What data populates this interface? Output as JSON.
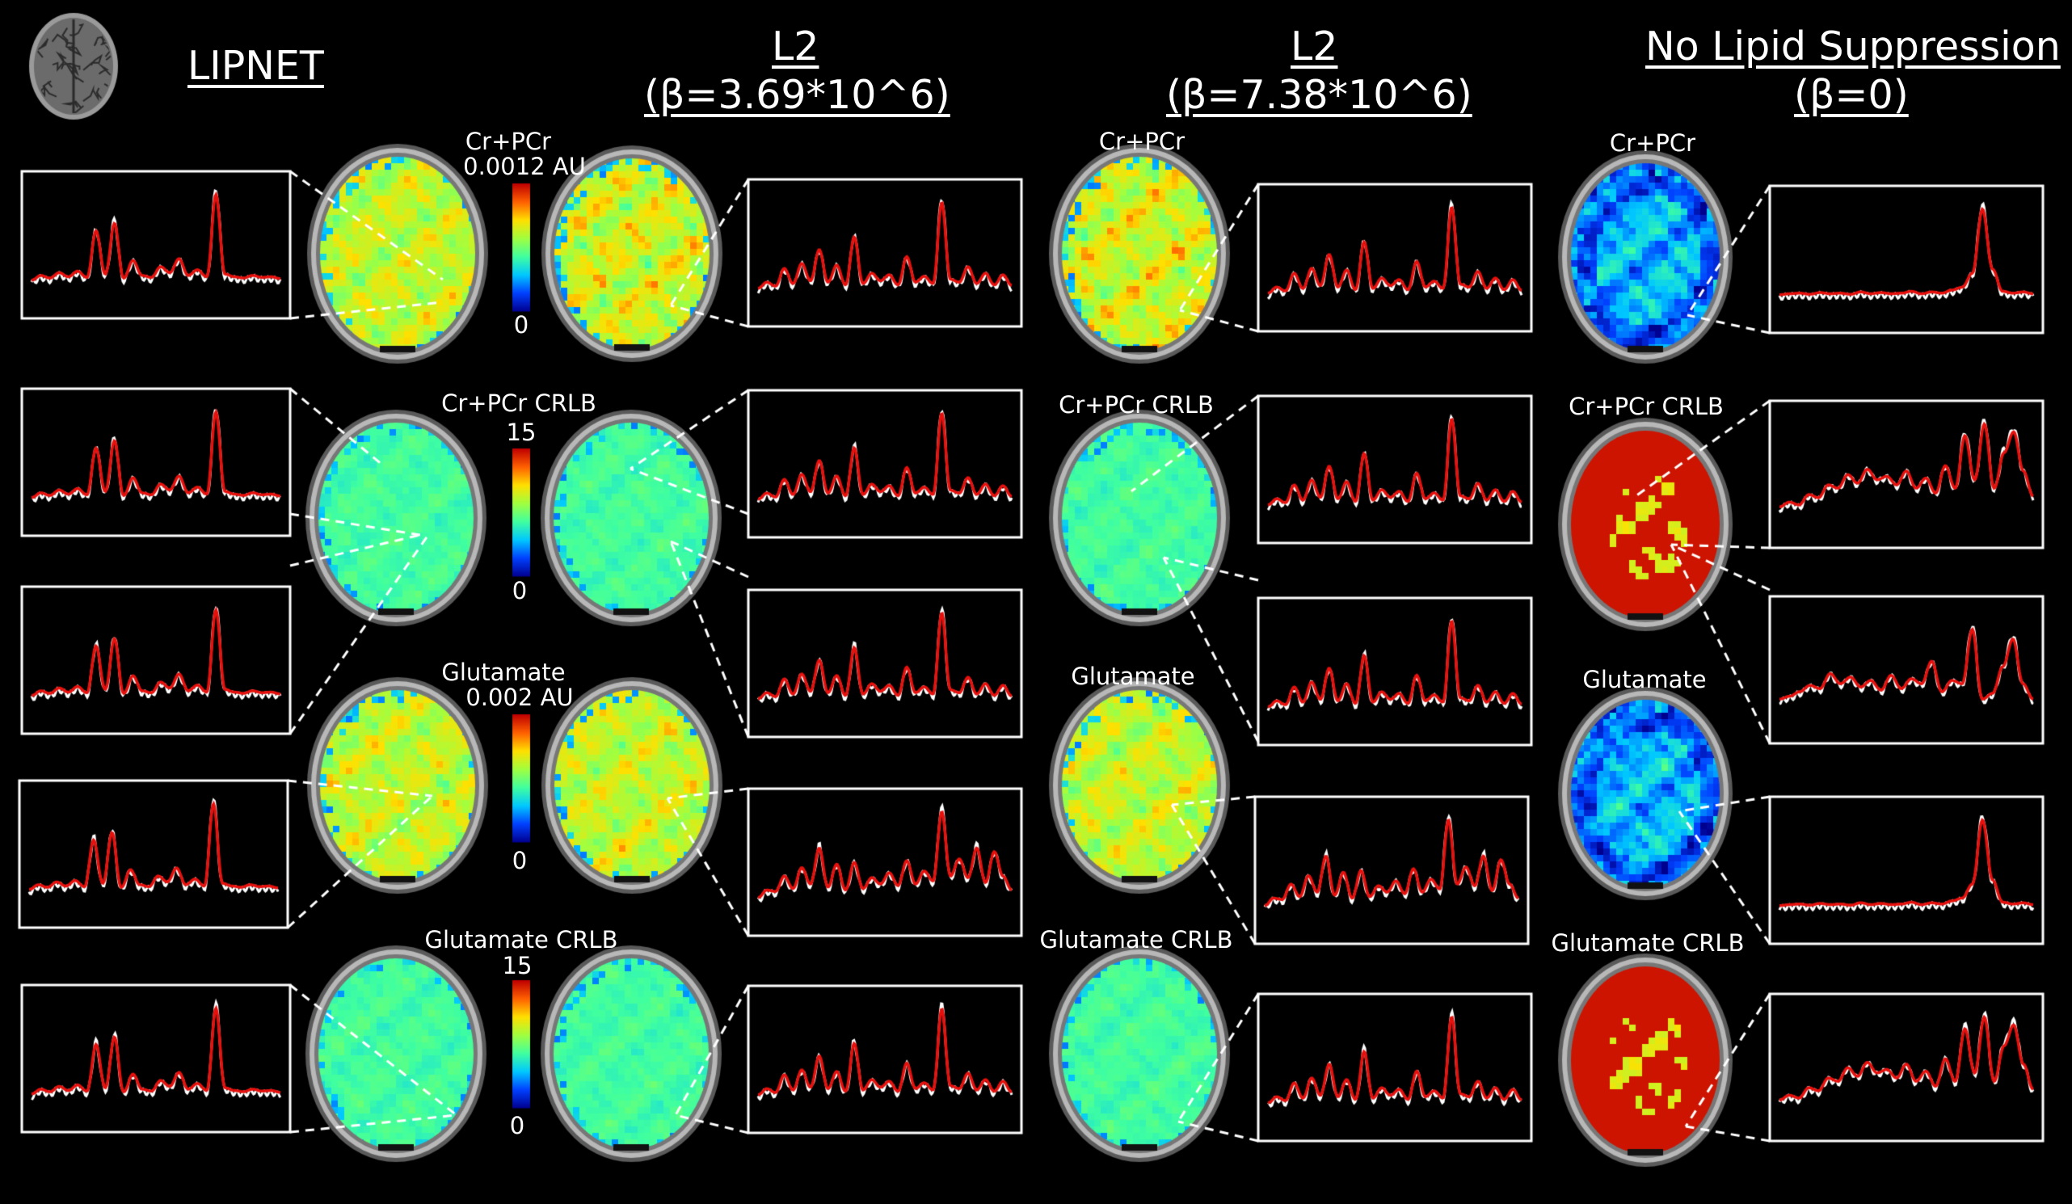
{
  "headers": {
    "lipnet": "LIPNET",
    "l2_a_line1": "L2",
    "l2_a_line2": "(β=3.69*10^6)",
    "l2_b_line1": "L2",
    "l2_b_line2": "(β=7.38*10^6)",
    "nolipid_line1": "No Lipid Suppression",
    "nolipid_line2": "(β=0)"
  },
  "maps": {
    "crpcr": "Cr+PCr",
    "crpcr_crlb": "Cr+PCr CRLB",
    "glutamate": "Glutamate",
    "glutamate_crlb": "Glutamate CRLB"
  },
  "colorbars": {
    "crpcr": {
      "label": "Cr+PCr",
      "max": "0.0012 AU",
      "min": "0"
    },
    "crpcr_crlb": {
      "label": "Cr+PCr CRLB",
      "max": "15",
      "min": "0"
    },
    "glutamate": {
      "label": "Glutamate",
      "max": "0.002 AU",
      "min": "0"
    },
    "glutamate_crlb": {
      "label": "Glutamate CRLB",
      "max": "15",
      "min": "0"
    }
  },
  "colors": {
    "background": "#000000",
    "fit_line": "#e8100c",
    "spectrum_line": "#ffffff",
    "box_border": "#ffffff",
    "jet": [
      "#00008f",
      "#0040ff",
      "#00c8ff",
      "#40ff9f",
      "#a0ff40",
      "#ffe000",
      "#ff6000",
      "#c00000"
    ]
  },
  "spectrum_profiles": {
    "lipnet": [
      0,
      0.08,
      0.04,
      0.12,
      0.06,
      0.14,
      0.05,
      0.62,
      0.1,
      0.7,
      0.04,
      0.28,
      0.08,
      0.05,
      0.2,
      0.12,
      0.3,
      0.08,
      0.16,
      0.06,
      1.0,
      0.1,
      0.06,
      0.04,
      0.08,
      0.05,
      0.06,
      0.03
    ],
    "l2": [
      0,
      0.1,
      0.04,
      0.28,
      0.08,
      0.34,
      0.12,
      0.5,
      0.1,
      0.32,
      0.06,
      0.64,
      0.08,
      0.22,
      0.12,
      0.2,
      0.06,
      0.42,
      0.1,
      0.18,
      0.08,
      1.0,
      0.14,
      0.1,
      0.3,
      0.08,
      0.22,
      0.06,
      0.2,
      0.05
    ],
    "l2_noisy": [
      0,
      0.12,
      0.1,
      0.3,
      0.14,
      0.4,
      0.2,
      0.62,
      0.16,
      0.44,
      0.12,
      0.46,
      0.14,
      0.28,
      0.2,
      0.34,
      0.18,
      0.48,
      0.2,
      0.36,
      0.24,
      1.0,
      0.3,
      0.5,
      0.28,
      0.62,
      0.22,
      0.58,
      0.3,
      0.12
    ],
    "flat_peak": [
      0,
      0.02,
      0.03,
      0.01,
      0.04,
      0.02,
      0.03,
      0.01,
      0.05,
      0.02,
      0.04,
      0.02,
      0.03,
      0.06,
      0.02,
      0.05,
      0.03,
      0.08,
      0.12,
      0.3,
      1.0,
      0.35,
      0.06,
      0.03,
      0.05,
      0.02
    ],
    "rising": [
      0.05,
      0.12,
      0.08,
      0.22,
      0.18,
      0.34,
      0.3,
      0.46,
      0.36,
      0.52,
      0.4,
      0.44,
      0.34,
      0.5,
      0.3,
      0.42,
      0.24,
      0.56,
      0.3,
      0.88,
      0.4,
      1.0,
      0.3,
      0.7,
      0.92,
      0.5,
      0.2
    ],
    "crlb_bad": [
      0.1,
      0.14,
      0.2,
      0.28,
      0.24,
      0.42,
      0.3,
      0.38,
      0.26,
      0.34,
      0.22,
      0.4,
      0.24,
      0.36,
      0.3,
      0.56,
      0.2,
      0.34,
      0.3,
      0.9,
      0.1,
      0.18,
      0.5,
      0.8,
      0.3,
      0.1
    ]
  }
}
